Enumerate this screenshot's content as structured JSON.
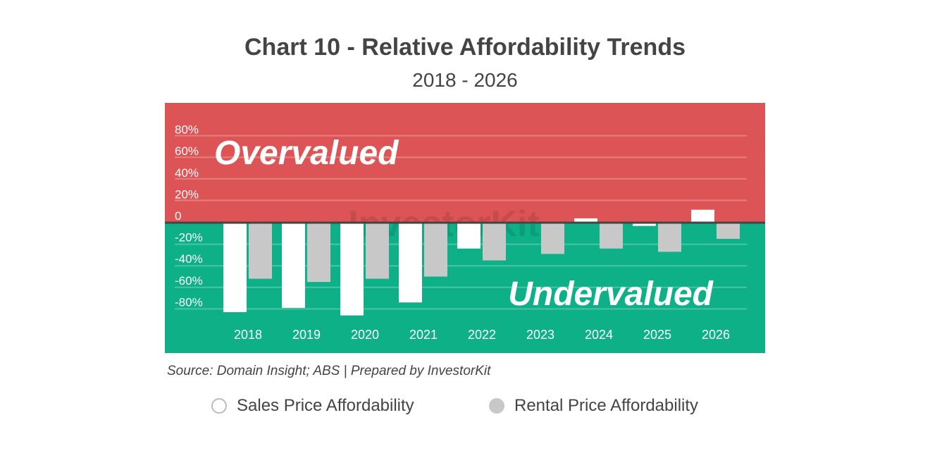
{
  "chart_data": {
    "type": "bar",
    "title": "Chart 10 - Relative Affordability Trends",
    "subtitle": "2018 - 2026",
    "categories": [
      "2018",
      "2019",
      "2020",
      "2021",
      "2022",
      "2023",
      "2024",
      "2025",
      "2026"
    ],
    "series": [
      {
        "name": "Sales Price Affordability",
        "color": "#ffffff",
        "values": [
          -83,
          -79,
          -86,
          -74,
          -24,
          -1,
          4,
          -3,
          12
        ]
      },
      {
        "name": "Rental Price Affordability",
        "color": "#c8c8c8",
        "values": [
          -52,
          -55,
          -52,
          -50,
          -35,
          -29,
          -24,
          -27,
          -15
        ]
      }
    ],
    "yticks": [
      {
        "value": 80,
        "label": "80%"
      },
      {
        "value": 60,
        "label": "60%"
      },
      {
        "value": 40,
        "label": "40%"
      },
      {
        "value": 20,
        "label": "20%"
      },
      {
        "value": 0,
        "label": "0"
      },
      {
        "value": -20,
        "label": "-20%"
      },
      {
        "value": -40,
        "label": "-40%"
      },
      {
        "value": -60,
        "label": "-60%"
      },
      {
        "value": -80,
        "label": "-80%"
      }
    ],
    "ylim": [
      -120,
      110
    ],
    "grid": true,
    "annotations": {
      "positive_region": "Overvalued",
      "negative_region": "Undervalued"
    },
    "region_colors": {
      "positive": "#dc5456",
      "negative": "#0db087"
    },
    "source": "Source: Domain Insight; ABS | Prepared by InvestorKit",
    "watermark": "InvestorKit",
    "legend_position": "bottom"
  }
}
